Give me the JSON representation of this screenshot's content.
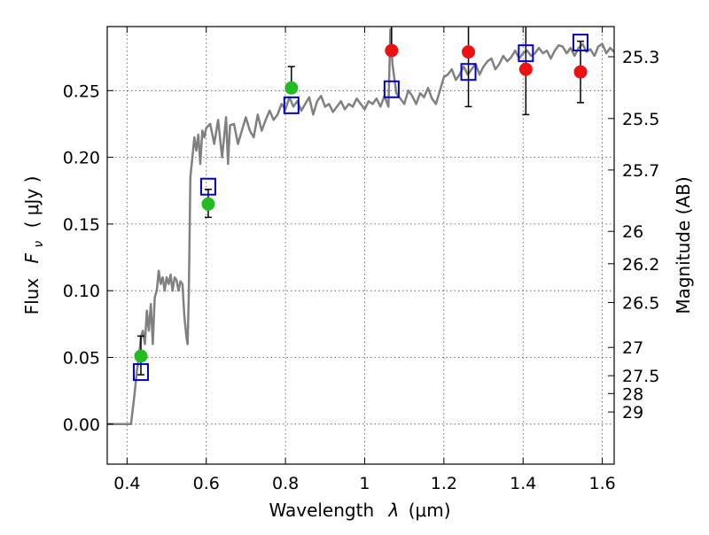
{
  "chart_data": {
    "type": "scatter",
    "xlabel_prefix": "Wavelength",
    "xlabel_symbol": "λ",
    "xlabel_unit": "(μm)",
    "ylabel_prefix": "Flux",
    "ylabel_symbol": "F",
    "ylabel_subscript": "ν",
    "ylabel_unit": "( μJy )",
    "y2label": "Magnitude (AB)",
    "xlim": [
      0.35,
      1.63
    ],
    "ylim": [
      -0.03,
      0.298
    ],
    "grid": true,
    "x_ticks": [
      {
        "value": 0.4,
        "label": "0.4"
      },
      {
        "value": 0.6,
        "label": "0.6"
      },
      {
        "value": 0.8,
        "label": "0.8"
      },
      {
        "value": 1.0,
        "label": "1"
      },
      {
        "value": 1.2,
        "label": "1.2"
      },
      {
        "value": 1.4,
        "label": "1.4"
      },
      {
        "value": 1.6,
        "label": "1.6"
      }
    ],
    "y_ticks": [
      {
        "value": 0.0,
        "label": "0.00"
      },
      {
        "value": 0.05,
        "label": "0.05"
      },
      {
        "value": 0.1,
        "label": "0.10"
      },
      {
        "value": 0.15,
        "label": "0.15"
      },
      {
        "value": 0.2,
        "label": "0.20"
      },
      {
        "value": 0.25,
        "label": "0.25"
      }
    ],
    "magnitude_ticks": [
      {
        "label": "25.3",
        "flux": 0.2754
      },
      {
        "label": "25.5",
        "flux": 0.2291
      },
      {
        "label": "25.7",
        "flux": 0.1905
      },
      {
        "label": "26",
        "flux": 0.1445
      },
      {
        "label": "26.2",
        "flux": 0.1202
      },
      {
        "label": "26.5",
        "flux": 0.0912
      },
      {
        "label": "27",
        "flux": 0.0575
      },
      {
        "label": "27.5",
        "flux": 0.0363
      },
      {
        "label": "28",
        "flux": 0.0229
      },
      {
        "label": "29",
        "flux": 0.0091
      }
    ],
    "colors": {
      "model": "#808080",
      "green": "#22bb22",
      "red": "#ee1111",
      "square": "#0000cc",
      "errorbar": "#000000"
    },
    "model_sed": {
      "x": [
        0.35,
        0.38,
        0.41,
        0.418,
        0.425,
        0.43,
        0.435,
        0.44,
        0.445,
        0.45,
        0.455,
        0.46,
        0.465,
        0.47,
        0.475,
        0.48,
        0.485,
        0.49,
        0.495,
        0.5,
        0.505,
        0.51,
        0.515,
        0.52,
        0.525,
        0.53,
        0.535,
        0.54,
        0.545,
        0.55,
        0.553,
        0.556,
        0.56,
        0.565,
        0.57,
        0.575,
        0.58,
        0.585,
        0.59,
        0.595,
        0.6,
        0.61,
        0.62,
        0.63,
        0.64,
        0.65,
        0.655,
        0.66,
        0.67,
        0.68,
        0.69,
        0.7,
        0.71,
        0.72,
        0.73,
        0.74,
        0.75,
        0.76,
        0.77,
        0.78,
        0.79,
        0.8,
        0.81,
        0.82,
        0.83,
        0.84,
        0.85,
        0.86,
        0.87,
        0.88,
        0.89,
        0.9,
        0.91,
        0.92,
        0.93,
        0.94,
        0.95,
        0.96,
        0.97,
        0.98,
        0.99,
        1.0,
        1.01,
        1.02,
        1.03,
        1.04,
        1.05,
        1.06,
        1.065,
        1.07,
        1.08,
        1.09,
        1.1,
        1.11,
        1.12,
        1.13,
        1.14,
        1.15,
        1.16,
        1.17,
        1.18,
        1.19,
        1.2,
        1.21,
        1.22,
        1.23,
        1.24,
        1.25,
        1.26,
        1.27,
        1.28,
        1.29,
        1.3,
        1.31,
        1.32,
        1.33,
        1.34,
        1.35,
        1.36,
        1.37,
        1.38,
        1.39,
        1.4,
        1.41,
        1.42,
        1.43,
        1.44,
        1.45,
        1.46,
        1.47,
        1.48,
        1.49,
        1.5,
        1.51,
        1.52,
        1.53,
        1.54,
        1.55,
        1.56,
        1.57,
        1.58,
        1.59,
        1.6,
        1.61,
        1.62,
        1.63
      ],
      "y": [
        0.0,
        0.0,
        0.0,
        0.02,
        0.04,
        0.05,
        0.065,
        0.07,
        0.06,
        0.085,
        0.07,
        0.09,
        0.06,
        0.095,
        0.1,
        0.115,
        0.105,
        0.11,
        0.1,
        0.11,
        0.105,
        0.112,
        0.1,
        0.11,
        0.108,
        0.1,
        0.107,
        0.105,
        0.08,
        0.065,
        0.06,
        0.1,
        0.185,
        0.2,
        0.215,
        0.205,
        0.217,
        0.195,
        0.22,
        0.215,
        0.222,
        0.225,
        0.21,
        0.228,
        0.2,
        0.23,
        0.195,
        0.224,
        0.225,
        0.21,
        0.22,
        0.23,
        0.22,
        0.215,
        0.232,
        0.22,
        0.228,
        0.235,
        0.228,
        0.232,
        0.24,
        0.236,
        0.245,
        0.238,
        0.242,
        0.235,
        0.24,
        0.245,
        0.232,
        0.242,
        0.246,
        0.238,
        0.24,
        0.234,
        0.238,
        0.242,
        0.236,
        0.24,
        0.238,
        0.244,
        0.24,
        0.236,
        0.242,
        0.24,
        0.244,
        0.238,
        0.246,
        0.238,
        0.296,
        0.27,
        0.248,
        0.244,
        0.24,
        0.25,
        0.246,
        0.24,
        0.248,
        0.245,
        0.252,
        0.244,
        0.24,
        0.25,
        0.26,
        0.262,
        0.266,
        0.258,
        0.262,
        0.268,
        0.262,
        0.266,
        0.27,
        0.262,
        0.268,
        0.272,
        0.274,
        0.266,
        0.27,
        0.276,
        0.272,
        0.275,
        0.28,
        0.274,
        0.278,
        0.28,
        0.276,
        0.278,
        0.282,
        0.278,
        0.28,
        0.274,
        0.28,
        0.284,
        0.283,
        0.278,
        0.282,
        0.276,
        0.282,
        0.285,
        0.279,
        0.281,
        0.276,
        0.283,
        0.285,
        0.278,
        0.282,
        0.279
      ]
    },
    "green_points": [
      {
        "x": 0.435,
        "y": 0.051,
        "err_low": 0.014,
        "err_high": 0.015
      },
      {
        "x": 0.605,
        "y": 0.165,
        "err_low": 0.01,
        "err_high": 0.011
      },
      {
        "x": 0.815,
        "y": 0.252,
        "err_low": 0.0,
        "err_high": 0.016
      }
    ],
    "red_points": [
      {
        "x": 1.068,
        "y": 0.28,
        "err_low": 0.0,
        "err_high": 0.04
      },
      {
        "x": 1.262,
        "y": 0.279,
        "err_low": 0.041,
        "err_high": 0.04
      },
      {
        "x": 1.407,
        "y": 0.266,
        "err_low": 0.034,
        "err_high": 0.04
      },
      {
        "x": 1.545,
        "y": 0.264,
        "err_low": 0.023,
        "err_high": 0.023
      }
    ],
    "model_band_points": [
      {
        "x": 0.435,
        "y": 0.039
      },
      {
        "x": 0.605,
        "y": 0.178
      },
      {
        "x": 0.815,
        "y": 0.239
      },
      {
        "x": 1.068,
        "y": 0.251
      },
      {
        "x": 1.262,
        "y": 0.264
      },
      {
        "x": 1.407,
        "y": 0.278
      },
      {
        "x": 1.545,
        "y": 0.286
      }
    ]
  }
}
